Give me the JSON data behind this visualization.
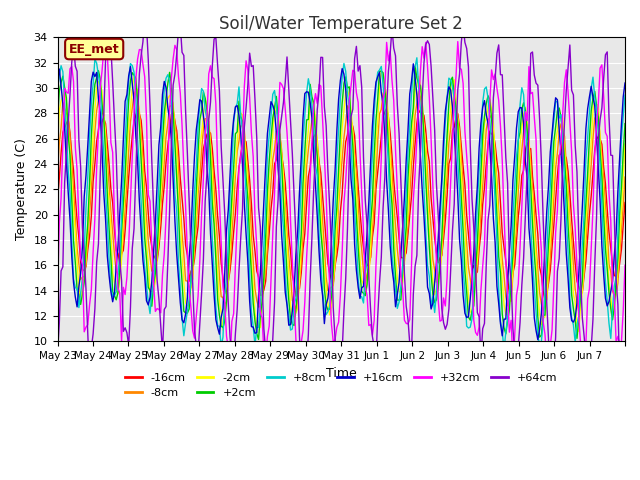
{
  "title": "Soil/Water Temperature Set 2",
  "xlabel": "Time",
  "ylabel": "Temperature (C)",
  "ylim": [
    10,
    34
  ],
  "yticks": [
    10,
    12,
    14,
    16,
    18,
    20,
    22,
    24,
    26,
    28,
    30,
    32,
    34
  ],
  "xtick_labels": [
    "May 23",
    "May 24",
    "May 25",
    "May 26",
    "May 27",
    "May 28",
    "May 29",
    "May 30",
    "May 31",
    "Jun 1",
    "Jun 2",
    "Jun 3",
    "Jun 4",
    "Jun 5",
    "Jun 6",
    "Jun 7"
  ],
  "annotation_text": "EE_met",
  "annotation_color": "#8B0000",
  "annotation_bg": "#FFFF99",
  "annotation_border": "#8B0000",
  "series": [
    {
      "label": "-16cm",
      "color": "#FF0000"
    },
    {
      "label": "-8cm",
      "color": "#FF8800"
    },
    {
      "label": "-2cm",
      "color": "#FFFF00"
    },
    {
      "label": "+2cm",
      "color": "#00CC00"
    },
    {
      "label": "+8cm",
      "color": "#00CCCC"
    },
    {
      "label": "+16cm",
      "color": "#0000CC"
    },
    {
      "label": "+32cm",
      "color": "#FF00FF"
    },
    {
      "label": "+64cm",
      "color": "#8800CC"
    }
  ],
  "bg_color": "#E8E8E8",
  "n_points": 320,
  "period": 24,
  "base_temp": 21,
  "amplitude": 6,
  "phase_shifts": [
    0.0,
    0.3,
    0.5,
    0.7,
    1.0,
    1.3,
    -0.5,
    -1.2
  ],
  "amplitude_mods": [
    1.0,
    1.2,
    1.4,
    1.5,
    1.6,
    1.5,
    1.8,
    2.0
  ],
  "noise_scales": [
    0.3,
    0.3,
    0.4,
    0.4,
    0.5,
    0.4,
    0.8,
    0.9
  ]
}
